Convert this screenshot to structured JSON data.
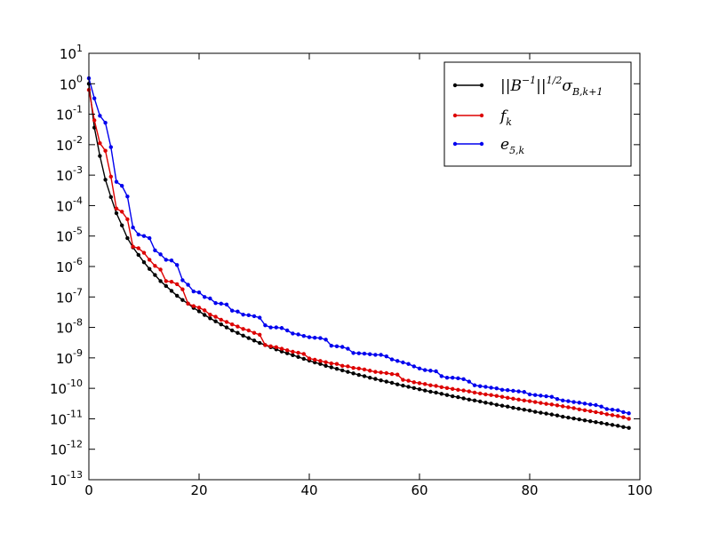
{
  "chart_data": {
    "type": "line",
    "title": "",
    "xlabel": "",
    "ylabel": "",
    "x_scale": "linear",
    "y_scale": "log",
    "xlim": [
      0,
      100
    ],
    "ylim": [
      1e-13,
      10
    ],
    "x_ticks": [
      0,
      20,
      40,
      60,
      80,
      100
    ],
    "y_tick_exponents": [
      1,
      0,
      -1,
      -2,
      -3,
      -4,
      -5,
      -6,
      -7,
      -8,
      -9,
      -10,
      -11,
      -12,
      -13
    ],
    "grid": false,
    "legend_position": "top-right",
    "series": [
      {
        "name": "||B⁻¹||^{1/2} σ_{B,k+1}",
        "color": "#000000",
        "x": [
          0,
          1,
          2,
          3,
          4,
          5,
          6,
          7,
          8,
          9,
          10,
          11,
          12,
          13,
          14,
          15,
          16,
          17,
          18,
          19,
          20,
          21,
          22,
          23,
          24,
          25,
          26,
          27,
          28,
          29,
          30,
          31,
          32,
          33,
          34,
          35,
          36,
          37,
          38,
          39,
          40,
          41,
          42,
          43,
          44,
          45,
          46,
          47,
          48,
          49,
          50,
          51,
          52,
          53,
          54,
          55,
          56,
          57,
          58,
          59,
          60,
          61,
          62,
          63,
          64,
          65,
          66,
          67,
          68,
          69,
          70,
          71,
          72,
          73,
          74,
          75,
          76,
          77,
          78,
          79,
          80,
          81,
          82,
          83,
          84,
          85,
          86,
          87,
          88,
          89,
          90,
          91,
          92,
          93,
          94,
          95,
          96,
          97,
          98
        ],
        "log10_y": [
          0.0,
          -1.44,
          -2.37,
          -3.15,
          -3.72,
          -4.25,
          -4.65,
          -5.07,
          -5.37,
          -5.62,
          -5.86,
          -6.08,
          -6.28,
          -6.48,
          -6.64,
          -6.8,
          -6.96,
          -7.1,
          -7.22,
          -7.36,
          -7.47,
          -7.59,
          -7.7,
          -7.8,
          -7.9,
          -8.0,
          -8.1,
          -8.18,
          -8.27,
          -8.35,
          -8.43,
          -8.51,
          -8.58,
          -8.65,
          -8.72,
          -8.79,
          -8.85,
          -8.91,
          -8.97,
          -9.03,
          -9.09,
          -9.15,
          -9.2,
          -9.26,
          -9.31,
          -9.36,
          -9.41,
          -9.46,
          -9.51,
          -9.56,
          -9.6,
          -9.65,
          -9.69,
          -9.74,
          -9.78,
          -9.82,
          -9.87,
          -9.91,
          -9.95,
          -9.99,
          -10.03,
          -10.07,
          -10.11,
          -10.14,
          -10.18,
          -10.22,
          -10.26,
          -10.29,
          -10.33,
          -10.37,
          -10.4,
          -10.43,
          -10.47,
          -10.5,
          -10.54,
          -10.57,
          -10.6,
          -10.64,
          -10.67,
          -10.7,
          -10.73,
          -10.77,
          -10.8,
          -10.83,
          -10.86,
          -10.89,
          -10.93,
          -10.96,
          -10.99,
          -11.02,
          -11.05,
          -11.08,
          -11.11,
          -11.14,
          -11.17,
          -11.2,
          -11.23,
          -11.27,
          -11.3
        ]
      },
      {
        "name": "f_k",
        "color": "#dd0000",
        "x": [
          0,
          1,
          2,
          3,
          4,
          5,
          6,
          7,
          8,
          9,
          10,
          11,
          12,
          13,
          14,
          15,
          16,
          17,
          18,
          19,
          20,
          21,
          22,
          23,
          24,
          25,
          26,
          27,
          28,
          29,
          30,
          31,
          32,
          33,
          34,
          35,
          36,
          37,
          38,
          39,
          40,
          41,
          42,
          43,
          44,
          45,
          46,
          47,
          48,
          49,
          50,
          51,
          52,
          53,
          54,
          55,
          56,
          57,
          58,
          59,
          60,
          61,
          62,
          63,
          64,
          65,
          66,
          67,
          68,
          69,
          70,
          71,
          72,
          73,
          74,
          75,
          76,
          77,
          78,
          79,
          80,
          81,
          82,
          83,
          84,
          85,
          86,
          87,
          88,
          89,
          90,
          91,
          92,
          93,
          94,
          95,
          96,
          97,
          98
        ],
        "log10_y": [
          -0.2,
          -1.2,
          -1.95,
          -2.2,
          -3.05,
          -4.1,
          -4.2,
          -4.45,
          -5.35,
          -5.4,
          -5.55,
          -5.78,
          -5.98,
          -6.1,
          -6.48,
          -6.5,
          -6.58,
          -6.75,
          -7.22,
          -7.3,
          -7.35,
          -7.44,
          -7.58,
          -7.65,
          -7.75,
          -7.82,
          -7.9,
          -7.97,
          -8.05,
          -8.1,
          -8.18,
          -8.24,
          -8.58,
          -8.62,
          -8.65,
          -8.7,
          -8.75,
          -8.8,
          -8.83,
          -8.87,
          -9.02,
          -9.06,
          -9.1,
          -9.14,
          -9.18,
          -9.2,
          -9.26,
          -9.28,
          -9.33,
          -9.35,
          -9.38,
          -9.42,
          -9.46,
          -9.48,
          -9.5,
          -9.53,
          -9.55,
          -9.72,
          -9.75,
          -9.8,
          -9.83,
          -9.86,
          -9.9,
          -9.92,
          -9.96,
          -9.99,
          -10.02,
          -10.05,
          -10.07,
          -10.1,
          -10.14,
          -10.17,
          -10.2,
          -10.22,
          -10.25,
          -10.28,
          -10.31,
          -10.34,
          -10.37,
          -10.4,
          -10.42,
          -10.45,
          -10.48,
          -10.51,
          -10.53,
          -10.56,
          -10.59,
          -10.62,
          -10.65,
          -10.69,
          -10.72,
          -10.75,
          -10.78,
          -10.81,
          -10.85,
          -10.88,
          -10.91,
          -10.95,
          -11.0
        ]
      },
      {
        "name": "e_{5,k}",
        "color": "#0000ee",
        "x": [
          0,
          1,
          2,
          3,
          4,
          5,
          6,
          7,
          8,
          9,
          10,
          11,
          12,
          13,
          14,
          15,
          16,
          17,
          18,
          19,
          20,
          21,
          22,
          23,
          24,
          25,
          26,
          27,
          28,
          29,
          30,
          31,
          32,
          33,
          34,
          35,
          36,
          37,
          38,
          39,
          40,
          41,
          42,
          43,
          44,
          45,
          46,
          47,
          48,
          49,
          50,
          51,
          52,
          53,
          54,
          55,
          56,
          57,
          58,
          59,
          60,
          61,
          62,
          63,
          64,
          65,
          66,
          67,
          68,
          69,
          70,
          71,
          72,
          73,
          74,
          75,
          76,
          77,
          78,
          79,
          80,
          81,
          82,
          83,
          84,
          85,
          86,
          87,
          88,
          89,
          90,
          91,
          92,
          93,
          94,
          95,
          96,
          97,
          98
        ],
        "log10_y": [
          0.18,
          -0.48,
          -1.05,
          -1.28,
          -2.08,
          -3.22,
          -3.35,
          -3.7,
          -4.72,
          -4.95,
          -5.0,
          -5.07,
          -5.47,
          -5.6,
          -5.78,
          -5.8,
          -5.95,
          -6.45,
          -6.6,
          -6.82,
          -6.85,
          -7.0,
          -7.05,
          -7.2,
          -7.22,
          -7.25,
          -7.45,
          -7.48,
          -7.58,
          -7.6,
          -7.63,
          -7.68,
          -7.93,
          -8.0,
          -8.0,
          -8.02,
          -8.1,
          -8.2,
          -8.23,
          -8.28,
          -8.32,
          -8.34,
          -8.35,
          -8.4,
          -8.6,
          -8.62,
          -8.64,
          -8.7,
          -8.84,
          -8.85,
          -8.86,
          -8.88,
          -8.9,
          -8.9,
          -8.95,
          -9.05,
          -9.1,
          -9.15,
          -9.2,
          -9.28,
          -9.35,
          -9.4,
          -9.42,
          -9.44,
          -9.6,
          -9.65,
          -9.65,
          -9.67,
          -9.7,
          -9.78,
          -9.9,
          -9.93,
          -9.95,
          -9.98,
          -10.0,
          -10.05,
          -10.06,
          -10.08,
          -10.1,
          -10.12,
          -10.2,
          -10.22,
          -10.24,
          -10.26,
          -10.28,
          -10.35,
          -10.4,
          -10.42,
          -10.45,
          -10.47,
          -10.5,
          -10.53,
          -10.55,
          -10.6,
          -10.68,
          -10.7,
          -10.72,
          -10.78,
          -10.82
        ]
      }
    ]
  }
}
